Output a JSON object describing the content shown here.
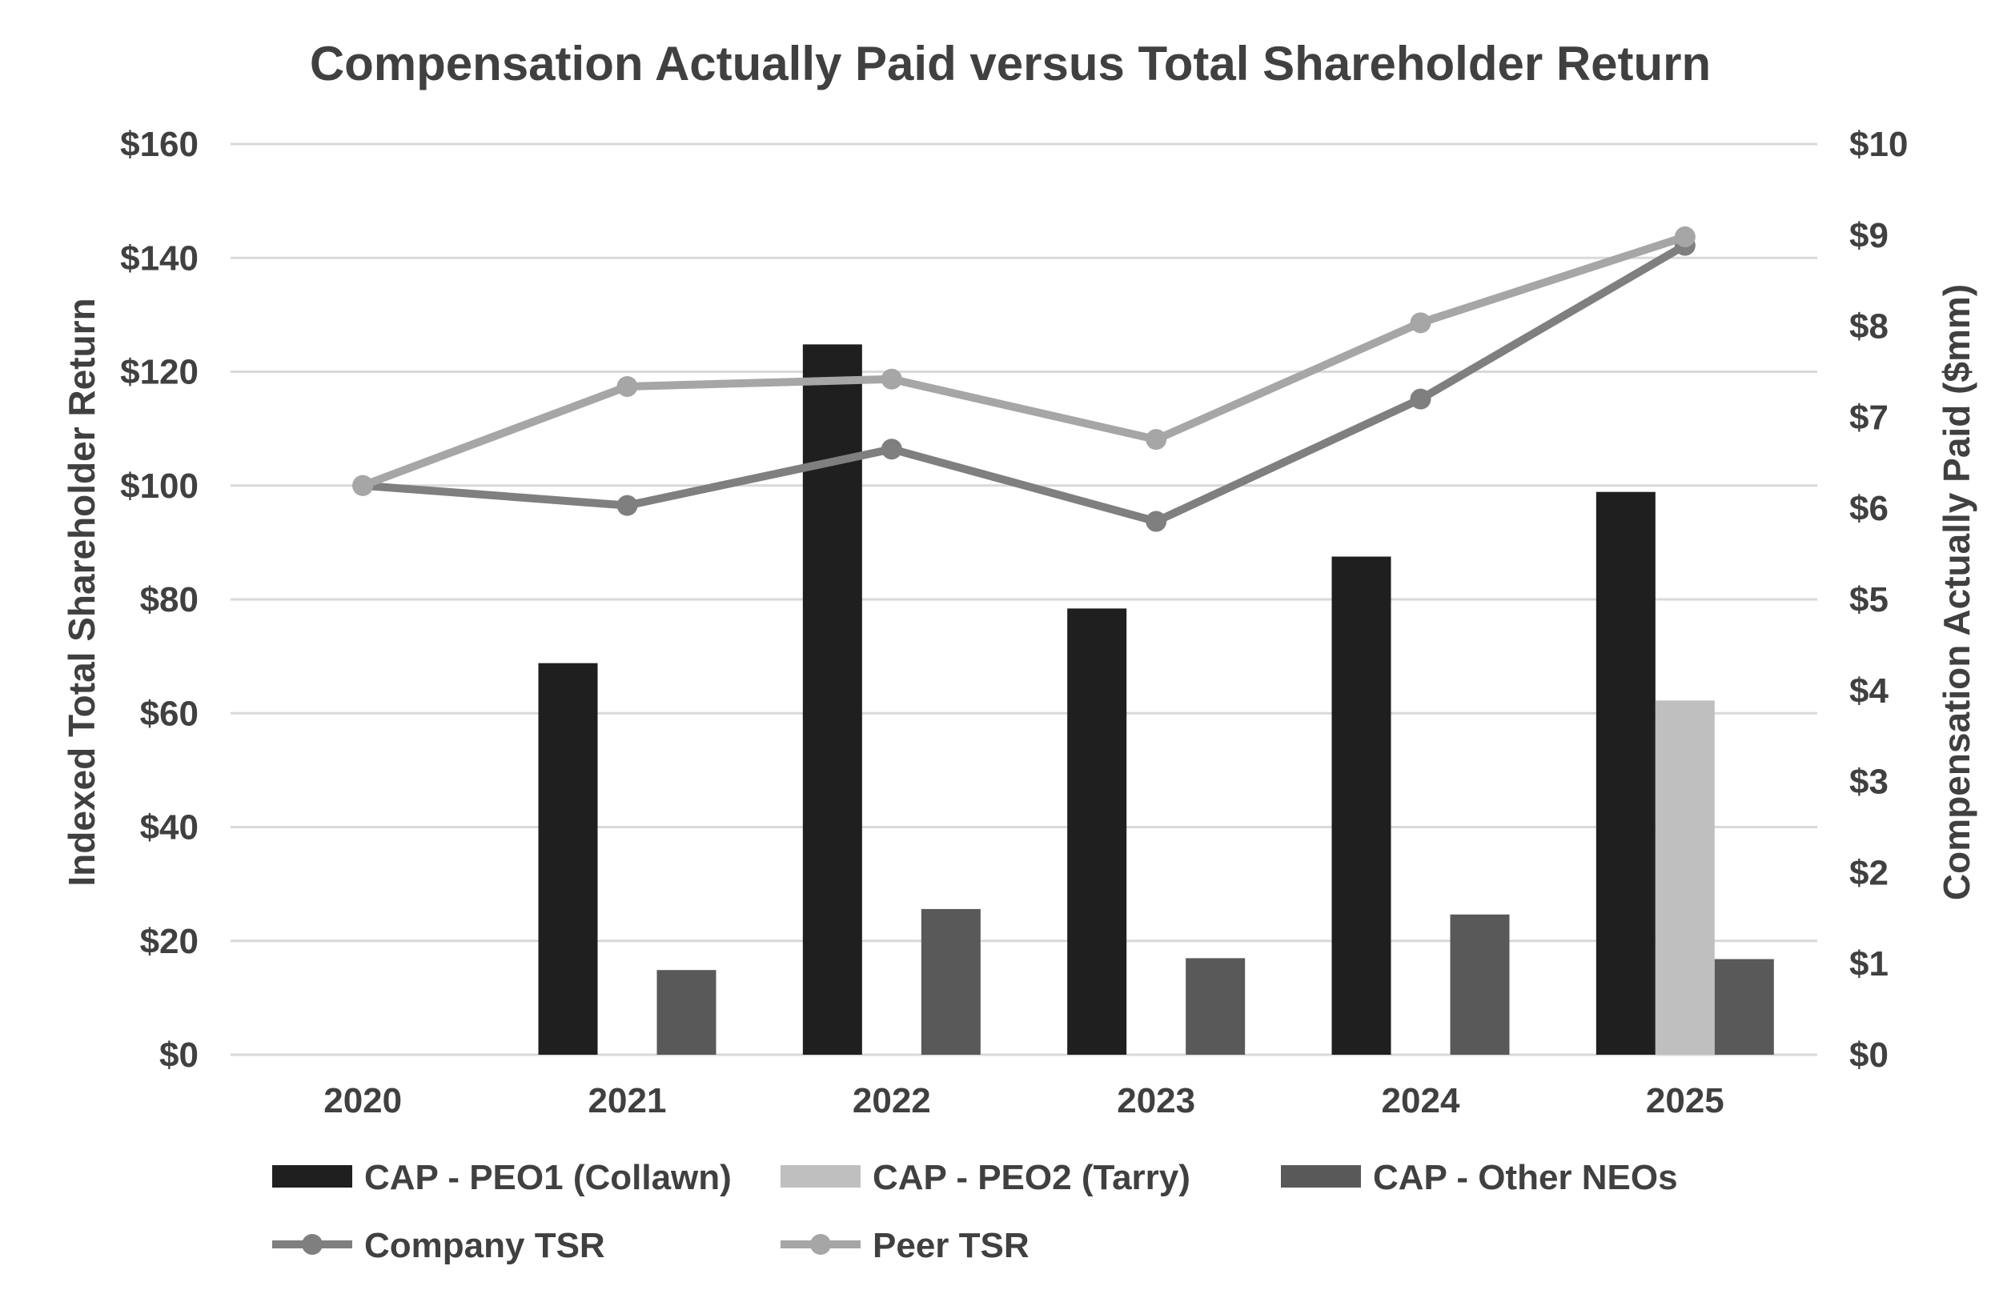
{
  "chart_data": {
    "type": "bar",
    "title": "Compensation Actually Paid versus Total Shareholder Return",
    "ylabel": "Indexed Total Shareholder Return",
    "y2label": "Compensation Actually Paid ($mm)",
    "categories": [
      "2020",
      "2021",
      "2022",
      "2023",
      "2024",
      "2025"
    ],
    "ylim": [
      0,
      160
    ],
    "y_ticks": [
      "$0",
      "$20",
      "$40",
      "$60",
      "$80",
      "$100",
      "$120",
      "$140",
      "$160"
    ],
    "y2lim": [
      0,
      10
    ],
    "y2_ticks": [
      "$0",
      "$1",
      "$2",
      "$3",
      "$4",
      "$5",
      "$6",
      "$7",
      "$8",
      "$9",
      "$10"
    ],
    "grid": true,
    "legend_position": "bottom",
    "bar_series": [
      {
        "name": "CAP - PEO1 (Collawn)",
        "color": "#1f1f1f",
        "axis": "right",
        "values": [
          null,
          4.3,
          7.8,
          4.9,
          5.47,
          6.18
        ]
      },
      {
        "name": "CAP - PEO2 (Tarry)",
        "color": "#bfbfbf",
        "axis": "right",
        "values": [
          null,
          null,
          null,
          null,
          null,
          3.89
        ]
      },
      {
        "name": "CAP - Other NEOs",
        "color": "#595959",
        "axis": "right",
        "values": [
          null,
          0.93,
          1.6,
          1.06,
          1.54,
          1.05
        ]
      }
    ],
    "line_series": [
      {
        "name": "Company TSR",
        "color": "#7f7f7f",
        "axis": "left",
        "values": [
          100,
          96.5,
          106.4,
          93.7,
          115.2,
          142.2
        ]
      },
      {
        "name": "Peer TSR",
        "color": "#a6a6a6",
        "axis": "left",
        "values": [
          100,
          117.4,
          118.7,
          108.1,
          128.6,
          143.7
        ]
      }
    ]
  }
}
